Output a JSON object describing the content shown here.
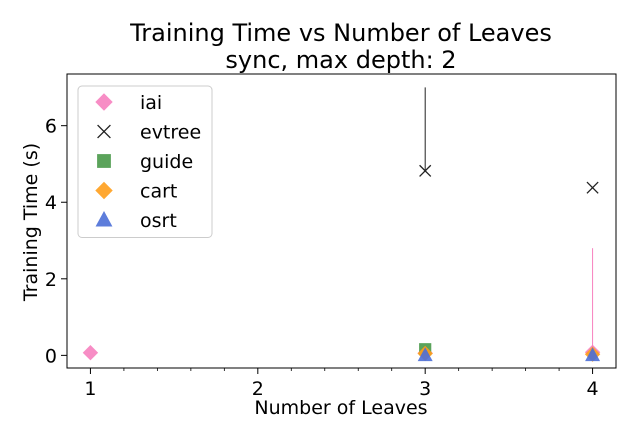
{
  "chart_data": {
    "type": "scatter",
    "title": "Training Time vs Number of Leaves",
    "subtitle": "sync, max depth: 2",
    "xlabel": "Number of Leaves",
    "ylabel": "Training Time (s)",
    "xlim": [
      0.86,
      4.14
    ],
    "ylim": [
      -0.33,
      7.35
    ],
    "xticks": [
      1,
      2,
      3,
      4
    ],
    "yticks": [
      0,
      2,
      4,
      6
    ],
    "legend_position": "top-left",
    "grid": false,
    "series": [
      {
        "name": "iai",
        "marker": "diamond",
        "color": "#f781bf",
        "points": [
          {
            "x": 1,
            "y": 0.07,
            "err_low": 0,
            "err_high": 0
          },
          {
            "x": 3,
            "y": 0.06,
            "err_low": 0,
            "err_high": 0
          },
          {
            "x": 4,
            "y": 0.08,
            "err_low": 0.08,
            "err_high": 2.72
          }
        ]
      },
      {
        "name": "evtree",
        "marker": "x",
        "color": "#222222",
        "points": [
          {
            "x": 3,
            "y": 4.82,
            "err_low": 0,
            "err_high": 2.18
          },
          {
            "x": 4,
            "y": 4.38,
            "err_low": 0,
            "err_high": 0
          }
        ]
      },
      {
        "name": "guide",
        "marker": "square",
        "color": "#4a9a4a",
        "points": [
          {
            "x": 3,
            "y": 0.16,
            "err_low": 0,
            "err_high": 0
          }
        ]
      },
      {
        "name": "cart",
        "marker": "diamond",
        "color": "#ff9f1c",
        "points": [
          {
            "x": 3,
            "y": 0.05,
            "err_low": 0,
            "err_high": 0
          },
          {
            "x": 4,
            "y": 0.03,
            "err_low": 0,
            "err_high": 0
          }
        ]
      },
      {
        "name": "osrt",
        "marker": "triangle",
        "color": "#4c6fd8",
        "points": [
          {
            "x": 3,
            "y": 0.0,
            "err_low": 0,
            "err_high": 0
          },
          {
            "x": 4,
            "y": 0.0,
            "err_low": 0,
            "err_high": 0
          }
        ]
      }
    ]
  }
}
